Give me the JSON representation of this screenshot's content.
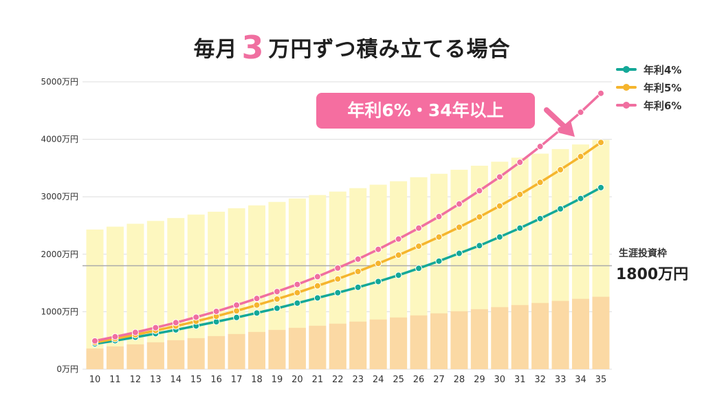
{
  "title": {
    "before": "毎月",
    "number": "3",
    "after": "万円ずつ積み立てる場合"
  },
  "colors": {
    "accent_pink": "#f06fa0",
    "callout_bg": "#f56ea0",
    "orange": "#f5b52e",
    "teal": "#14a898",
    "bar_total": "#fdf7bf",
    "bar_principal": "#fbd9a4",
    "limit_line": "#aaaaaa",
    "grid": "#dddddd"
  },
  "legend": [
    {
      "label": "年利4%",
      "color": "#14a898"
    },
    {
      "label": "年利5%",
      "color": "#f5b52e"
    },
    {
      "label": "年利6%",
      "color": "#f06fa0"
    }
  ],
  "callout": {
    "text": "年利6%・34年以上"
  },
  "limit": {
    "title": "生涯投資枠",
    "value": "1800万円"
  },
  "chart_data": {
    "type": "bar+line",
    "categories": [
      "10",
      "11",
      "12",
      "13",
      "14",
      "15",
      "16",
      "17",
      "18",
      "19",
      "20",
      "21",
      "22",
      "23",
      "24",
      "25",
      "26",
      "27",
      "28",
      "29",
      "30",
      "31",
      "32",
      "33",
      "34",
      "35"
    ],
    "ylim": [
      0,
      5000
    ],
    "y_ticks": [
      0,
      1000,
      2000,
      3000,
      4000,
      5000
    ],
    "y_tick_labels": [
      "0万円",
      "1000万円",
      "2000万円",
      "3000万円",
      "4000万円",
      "5000万円"
    ],
    "grid": true,
    "reference_line": {
      "value": 1800
    },
    "bar_series": [
      {
        "role": "total",
        "values": [
          2430,
          2480,
          2530,
          2580,
          2630,
          2690,
          2740,
          2800,
          2850,
          2910,
          2970,
          3030,
          3090,
          3150,
          3210,
          3270,
          3340,
          3400,
          3470,
          3540,
          3610,
          3680,
          3750,
          3830,
          3910,
          3990
        ]
      },
      {
        "role": "principal",
        "values": [
          360,
          396,
          432,
          468,
          504,
          540,
          576,
          612,
          648,
          684,
          720,
          756,
          792,
          828,
          864,
          900,
          936,
          972,
          1008,
          1044,
          1080,
          1116,
          1152,
          1188,
          1224,
          1260
        ]
      }
    ],
    "series": [
      {
        "name": "年利4%",
        "values": [
          440,
          496,
          556,
          618,
          684,
          753,
          825,
          900,
          978,
          1060,
          1150,
          1240,
          1330,
          1425,
          1525,
          1635,
          1755,
          1880,
          2015,
          2150,
          2300,
          2455,
          2620,
          2790,
          2970,
          3160
        ]
      },
      {
        "name": "年利5%",
        "values": [
          465,
          530,
          598,
          672,
          750,
          833,
          920,
          1015,
          1115,
          1220,
          1330,
          1450,
          1570,
          1700,
          1840,
          1985,
          2140,
          2300,
          2470,
          2650,
          2840,
          3040,
          3250,
          3470,
          3700,
          3945
        ]
      },
      {
        "name": "年利6%",
        "values": [
          492,
          565,
          640,
          722,
          810,
          905,
          1005,
          1115,
          1230,
          1350,
          1475,
          1610,
          1760,
          1915,
          2085,
          2265,
          2455,
          2655,
          2875,
          3105,
          3345,
          3600,
          3875,
          4165,
          4470,
          4800
        ]
      }
    ]
  }
}
